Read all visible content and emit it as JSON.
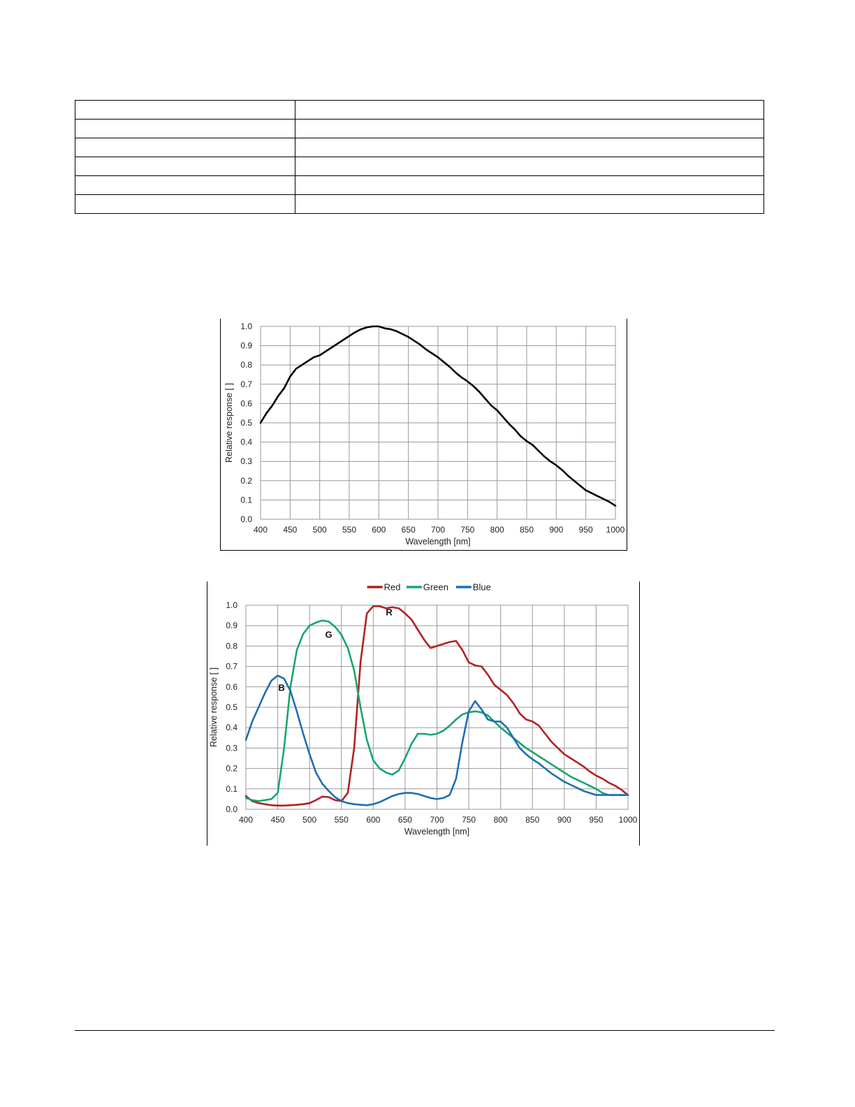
{
  "table": {
    "rows": 6,
    "cols": 2
  },
  "chart_data": [
    {
      "type": "line",
      "title": "",
      "xlabel": "Wavelength [nm]",
      "ylabel": "Relative response [ ]",
      "xlim": [
        400,
        1000
      ],
      "ylim": [
        0,
        1.0
      ],
      "xticks": [
        400,
        450,
        500,
        550,
        600,
        650,
        700,
        750,
        800,
        850,
        900,
        950,
        1000
      ],
      "yticks": [
        0.0,
        0.1,
        0.2,
        0.3,
        0.4,
        0.5,
        0.6,
        0.7,
        0.8,
        0.9,
        1.0
      ],
      "grid": true,
      "legend": "none",
      "series": [
        {
          "color": "#000000",
          "x": [
            400,
            410,
            420,
            430,
            440,
            450,
            460,
            470,
            480,
            490,
            500,
            510,
            520,
            530,
            540,
            550,
            560,
            570,
            580,
            590,
            600,
            610,
            620,
            630,
            640,
            650,
            660,
            670,
            680,
            690,
            700,
            710,
            720,
            730,
            740,
            750,
            760,
            770,
            780,
            790,
            800,
            810,
            820,
            830,
            840,
            850,
            860,
            870,
            880,
            890,
            900,
            910,
            920,
            930,
            940,
            950,
            960,
            970,
            980,
            990,
            1000
          ],
          "y": [
            0.5,
            0.55,
            0.59,
            0.64,
            0.68,
            0.74,
            0.78,
            0.8,
            0.82,
            0.84,
            0.85,
            0.87,
            0.89,
            0.91,
            0.93,
            0.95,
            0.97,
            0.985,
            0.995,
            1.0,
            1.0,
            0.99,
            0.985,
            0.975,
            0.96,
            0.945,
            0.925,
            0.905,
            0.88,
            0.86,
            0.84,
            0.815,
            0.79,
            0.76,
            0.735,
            0.715,
            0.69,
            0.66,
            0.625,
            0.59,
            0.565,
            0.53,
            0.495,
            0.465,
            0.43,
            0.405,
            0.385,
            0.355,
            0.325,
            0.3,
            0.28,
            0.255,
            0.225,
            0.2,
            0.175,
            0.15,
            0.135,
            0.12,
            0.105,
            0.09,
            0.07
          ]
        }
      ]
    },
    {
      "type": "line",
      "title": "",
      "xlabel": "Wavelength [nm]",
      "ylabel": "Relative response [ ]",
      "xlim": [
        400,
        1000
      ],
      "ylim": [
        0,
        1.0
      ],
      "xticks": [
        400,
        450,
        500,
        550,
        600,
        650,
        700,
        750,
        800,
        850,
        900,
        950,
        1000
      ],
      "yticks": [
        0.0,
        0.1,
        0.2,
        0.3,
        0.4,
        0.5,
        0.6,
        0.7,
        0.8,
        0.9,
        1.0
      ],
      "grid": true,
      "legend": "top",
      "series": [
        {
          "name": "Red",
          "label": "R",
          "color": "#b22222",
          "x": [
            400,
            410,
            420,
            430,
            440,
            450,
            460,
            470,
            480,
            490,
            500,
            510,
            520,
            530,
            540,
            550,
            560,
            570,
            580,
            590,
            600,
            610,
            620,
            630,
            640,
            650,
            660,
            670,
            680,
            690,
            700,
            710,
            720,
            730,
            740,
            750,
            760,
            770,
            780,
            790,
            800,
            810,
            820,
            830,
            840,
            850,
            860,
            870,
            880,
            890,
            900,
            910,
            920,
            930,
            940,
            950,
            960,
            970,
            980,
            990,
            1000
          ],
          "y": [
            0.065,
            0.04,
            0.03,
            0.025,
            0.02,
            0.018,
            0.018,
            0.02,
            0.022,
            0.025,
            0.03,
            0.045,
            0.062,
            0.06,
            0.045,
            0.04,
            0.08,
            0.3,
            0.72,
            0.96,
            0.995,
            0.995,
            0.985,
            0.99,
            0.985,
            0.96,
            0.93,
            0.88,
            0.83,
            0.79,
            0.8,
            0.81,
            0.82,
            0.825,
            0.78,
            0.72,
            0.705,
            0.7,
            0.66,
            0.61,
            0.585,
            0.56,
            0.52,
            0.47,
            0.44,
            0.43,
            0.41,
            0.37,
            0.33,
            0.3,
            0.27,
            0.25,
            0.23,
            0.21,
            0.185,
            0.165,
            0.15,
            0.13,
            0.115,
            0.095,
            0.07
          ]
        },
        {
          "name": "Green",
          "label": "G",
          "color": "#1aa66a",
          "x": [
            400,
            410,
            420,
            430,
            440,
            450,
            460,
            470,
            480,
            490,
            500,
            510,
            520,
            530,
            540,
            550,
            560,
            570,
            580,
            590,
            600,
            610,
            620,
            630,
            640,
            650,
            660,
            670,
            680,
            690,
            700,
            710,
            720,
            730,
            740,
            750,
            760,
            770,
            780,
            790,
            800,
            810,
            820,
            830,
            840,
            850,
            860,
            870,
            880,
            890,
            900,
            910,
            920,
            930,
            940,
            950,
            960,
            970,
            980,
            990,
            1000
          ],
          "y": [
            0.055,
            0.045,
            0.04,
            0.045,
            0.05,
            0.08,
            0.3,
            0.6,
            0.78,
            0.86,
            0.9,
            0.915,
            0.925,
            0.92,
            0.895,
            0.855,
            0.79,
            0.68,
            0.5,
            0.34,
            0.24,
            0.2,
            0.18,
            0.17,
            0.19,
            0.25,
            0.32,
            0.37,
            0.37,
            0.365,
            0.37,
            0.385,
            0.41,
            0.44,
            0.465,
            0.475,
            0.48,
            0.475,
            0.46,
            0.43,
            0.4,
            0.375,
            0.35,
            0.325,
            0.3,
            0.28,
            0.26,
            0.24,
            0.22,
            0.2,
            0.18,
            0.16,
            0.145,
            0.13,
            0.115,
            0.1,
            0.08,
            0.07,
            0.07,
            0.07,
            0.07
          ]
        },
        {
          "name": "Blue",
          "label": "B",
          "color": "#1f6fb2",
          "x": [
            400,
            410,
            420,
            430,
            440,
            450,
            460,
            470,
            480,
            490,
            500,
            510,
            520,
            530,
            540,
            550,
            560,
            570,
            580,
            590,
            600,
            610,
            620,
            630,
            640,
            650,
            660,
            670,
            680,
            690,
            700,
            710,
            720,
            730,
            740,
            750,
            760,
            770,
            780,
            790,
            800,
            810,
            820,
            830,
            840,
            850,
            860,
            870,
            880,
            890,
            900,
            910,
            920,
            930,
            940,
            950,
            960,
            970,
            980,
            990,
            1000
          ],
          "y": [
            0.34,
            0.43,
            0.5,
            0.57,
            0.63,
            0.655,
            0.64,
            0.58,
            0.48,
            0.37,
            0.27,
            0.18,
            0.125,
            0.09,
            0.06,
            0.04,
            0.03,
            0.025,
            0.022,
            0.02,
            0.025,
            0.035,
            0.05,
            0.065,
            0.075,
            0.08,
            0.08,
            0.075,
            0.065,
            0.055,
            0.05,
            0.055,
            0.07,
            0.15,
            0.33,
            0.48,
            0.53,
            0.49,
            0.44,
            0.43,
            0.43,
            0.4,
            0.35,
            0.3,
            0.27,
            0.245,
            0.225,
            0.2,
            0.175,
            0.155,
            0.135,
            0.12,
            0.105,
            0.09,
            0.08,
            0.07,
            0.07,
            0.07,
            0.07,
            0.07,
            0.07
          ]
        }
      ]
    }
  ]
}
